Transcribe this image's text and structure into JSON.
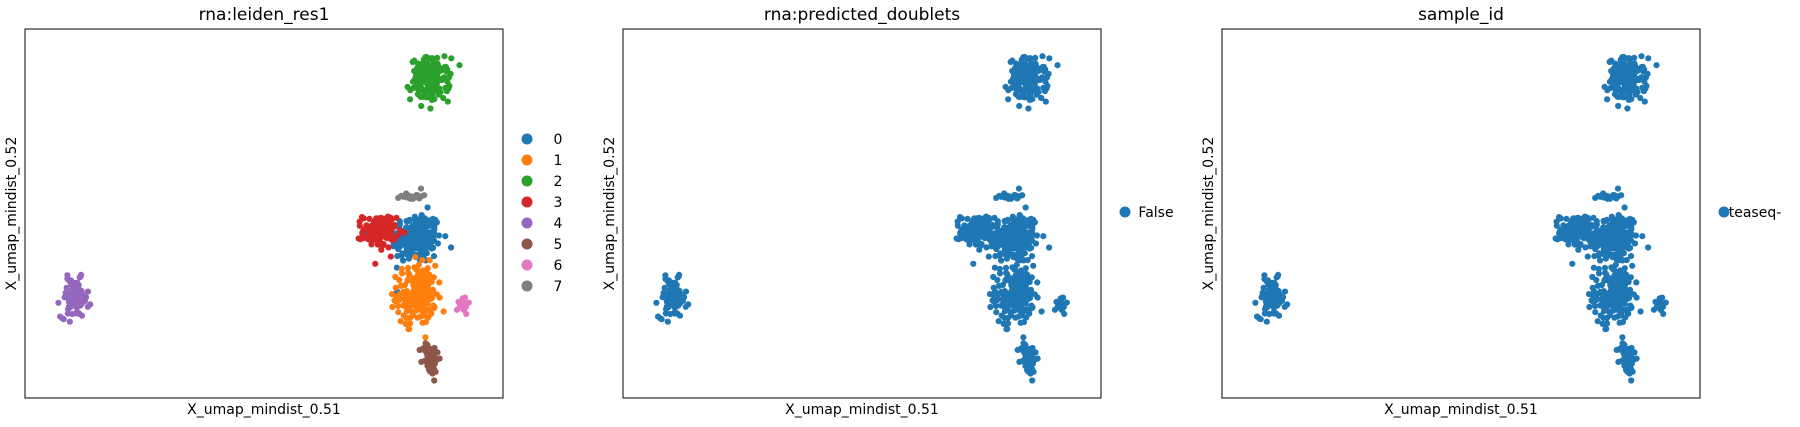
{
  "figure": {
    "colors": {
      "axes": "#000000",
      "background": "#ffffff",
      "palette": [
        "#1f77b4",
        "#ff7f0e",
        "#2ca02c",
        "#d62728",
        "#9467bd",
        "#8c564b",
        "#e377c2",
        "#7f7f7f"
      ]
    }
  },
  "chart_data": [
    {
      "type": "scatter",
      "title": "rna:leiden_res1",
      "xlabel": "X_umap_mindist_0.51",
      "ylabel": "X_umap_mindist_0.52",
      "ticks": "none",
      "grid": false,
      "legend_position": "right",
      "legend": [
        {
          "label": "0",
          "color": "#1f77b4"
        },
        {
          "label": "1",
          "color": "#ff7f0e"
        },
        {
          "label": "2",
          "color": "#2ca02c"
        },
        {
          "label": "3",
          "color": "#d62728"
        },
        {
          "label": "4",
          "color": "#9467bd"
        },
        {
          "label": "5",
          "color": "#8c564b"
        },
        {
          "label": "6",
          "color": "#e377c2"
        },
        {
          "label": "7",
          "color": "#7f7f7f"
        }
      ],
      "series": [
        {
          "name": "0",
          "color": "#1f77b4",
          "center": [
            0.83,
            0.43
          ],
          "spread": [
            0.045,
            0.06
          ],
          "n": 230
        },
        {
          "name": "1",
          "color": "#ff7f0e",
          "center": [
            0.83,
            0.27
          ],
          "spread": [
            0.035,
            0.07
          ],
          "n": 200
        },
        {
          "name": "2",
          "color": "#2ca02c",
          "center": [
            0.86,
            0.88
          ],
          "spread": [
            0.035,
            0.05
          ],
          "n": 160
        },
        {
          "name": "3",
          "color": "#d62728",
          "center": [
            0.75,
            0.45
          ],
          "spread": [
            0.03,
            0.04
          ],
          "n": 120
        },
        {
          "name": "4",
          "color": "#9467bd",
          "center": [
            0.09,
            0.26
          ],
          "spread": [
            0.025,
            0.045
          ],
          "n": 90
        },
        {
          "name": "5",
          "color": "#8c564b",
          "center": [
            0.86,
            0.09
          ],
          "spread": [
            0.015,
            0.04
          ],
          "n": 60
        },
        {
          "name": "6",
          "color": "#e377c2",
          "center": [
            0.93,
            0.24
          ],
          "spread": [
            0.01,
            0.02
          ],
          "n": 20
        },
        {
          "name": "7",
          "color": "#7f7f7f",
          "center": [
            0.82,
            0.55
          ],
          "spread": [
            0.02,
            0.01
          ],
          "n": 20
        }
      ]
    },
    {
      "type": "scatter",
      "title": "rna:predicted_doublets",
      "xlabel": "X_umap_mindist_0.51",
      "ylabel": "X_umap_mindist_0.52",
      "ticks": "none",
      "grid": false,
      "legend_position": "right",
      "legend": [
        {
          "label": "False",
          "color": "#1f77b4"
        }
      ],
      "series": [
        {
          "name": "False",
          "color": "#1f77b4",
          "clusters": "same as rna:leiden_res1"
        }
      ]
    },
    {
      "type": "scatter",
      "title": "sample_id",
      "xlabel": "X_umap_mindist_0.51",
      "ylabel": "X_umap_mindist_0.52",
      "ticks": "none",
      "grid": false,
      "legend_position": "right",
      "legend": [
        {
          "label": "teaseq-",
          "color": "#1f77b4"
        }
      ],
      "series": [
        {
          "name": "teaseq-",
          "color": "#1f77b4",
          "clusters": "same as rna:leiden_res1"
        }
      ]
    }
  ]
}
